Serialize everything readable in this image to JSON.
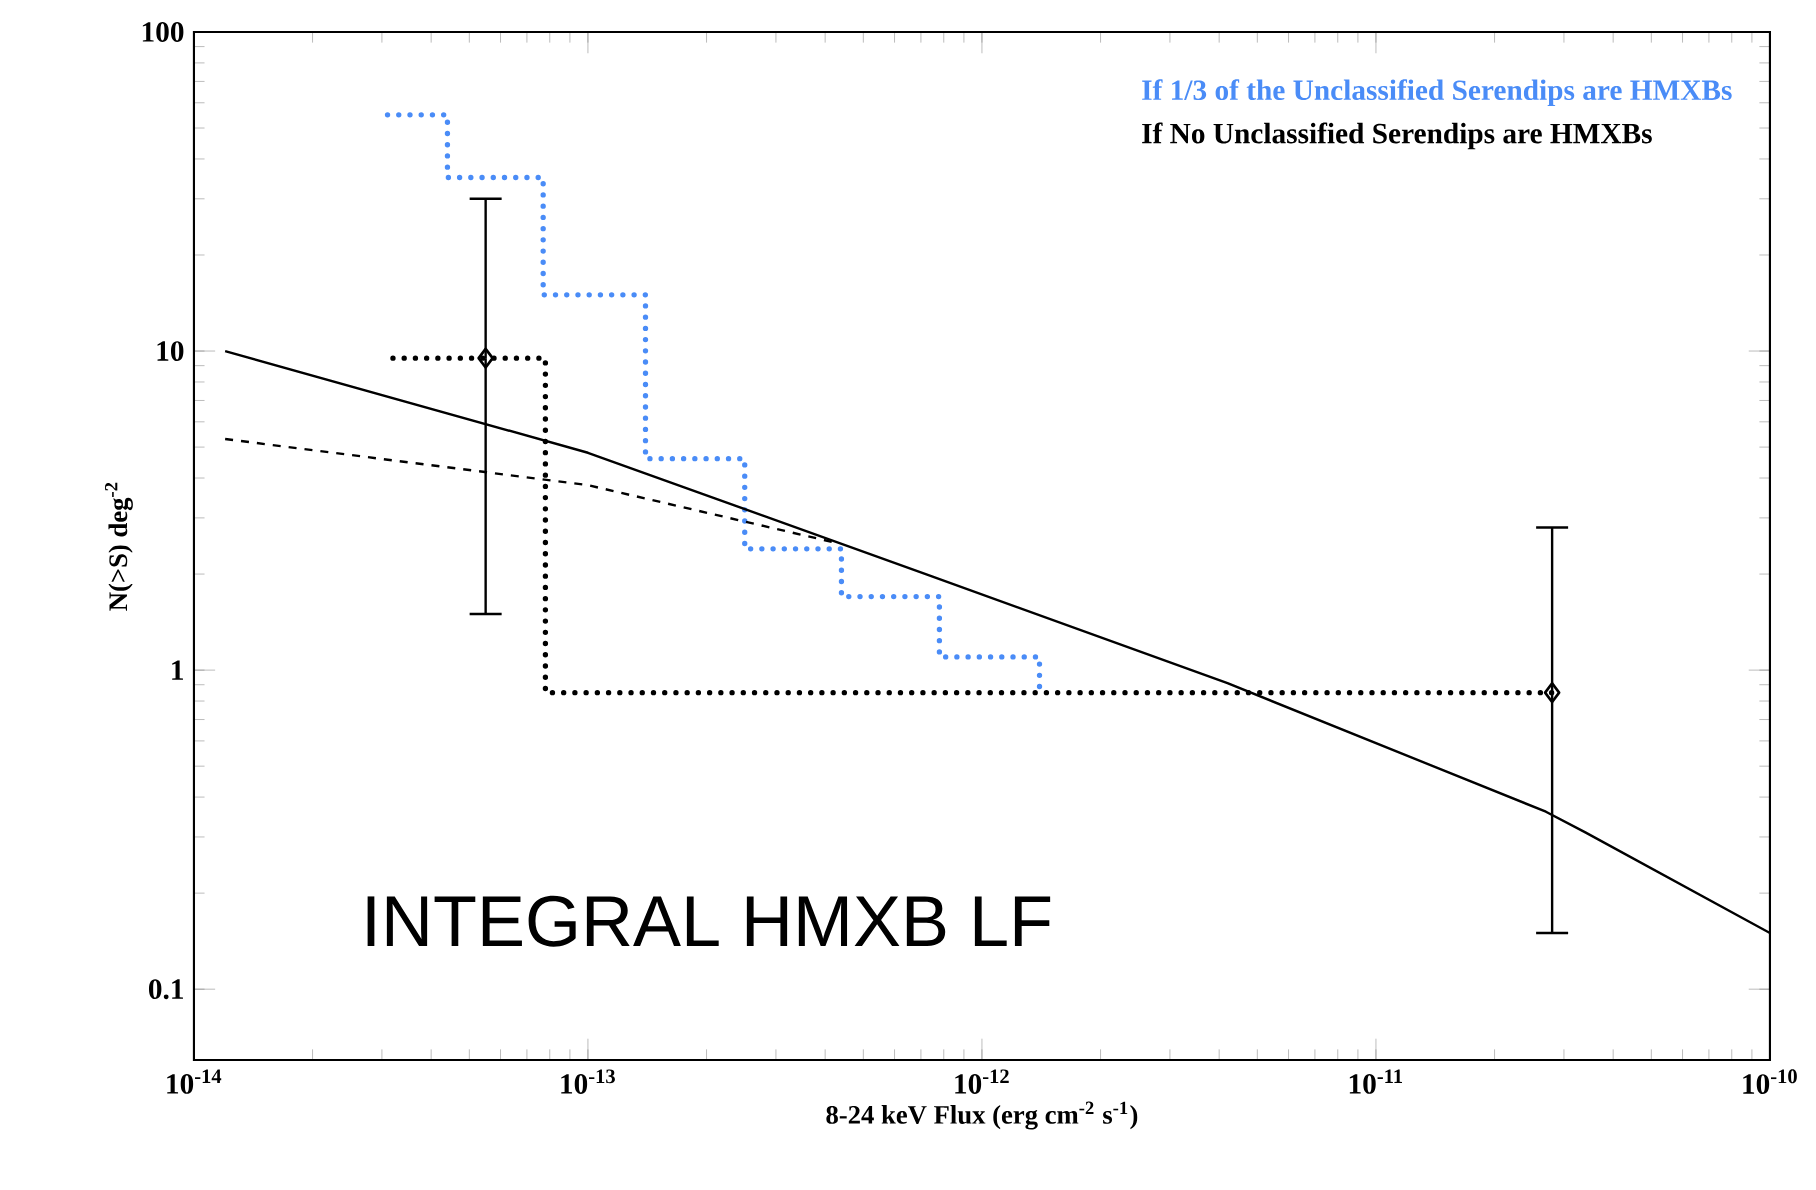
{
  "chart_data": {
    "type": "line",
    "xlabel": "8-24 keV Flux (erg cm$^{-2}$ s$^{-1}$)",
    "ylabel": "N(>S) deg$^{-2}$",
    "annotations": [
      "INTEGRAL HMXB LF"
    ],
    "log": "xy",
    "legend": "top right",
    "xlim": [
      1e-14,
      1e-10
    ],
    "ylim": [
      0.06,
      100
    ],
    "xticks": [
      {
        "value": 1e-14,
        "label": "10$^{-14}$"
      },
      {
        "value": 1e-13,
        "label": "10$^{-13}$"
      },
      {
        "value": 1e-12,
        "label": "10$^{-12}$"
      },
      {
        "value": 1e-11,
        "label": "10$^{-11}$"
      },
      {
        "value": 1e-10,
        "label": "10$^{-10}$"
      }
    ],
    "yticks": [
      0.1,
      1,
      10,
      100
    ],
    "series": [
      {
        "name": "If 1/3 of the Unclassified Serendips are HMXBs",
        "type": "step",
        "color": "#4a8cf7",
        "line_style": "dotted",
        "x": [
          3.1e-14,
          4.4e-14,
          7.7e-14,
          1.4e-13,
          2.5e-13,
          4.4e-13,
          7.8e-13,
          1.4e-12
        ],
        "values": [
          55,
          35,
          15,
          4.6,
          2.4,
          1.7,
          1.1,
          0.85
        ]
      },
      {
        "name": "If No Unclassified Serendips are HMXBs",
        "type": "step",
        "color": "#000000",
        "line_style": "dotted",
        "x": [
          3.2e-14,
          7.8e-14,
          2.8e-11
        ],
        "values": [
          9.5,
          0.85,
          0.85
        ]
      },
      {
        "color": "#000000",
        "line_style": "solid",
        "x": [
          1.2e-14,
          1e-13,
          7.2e-13,
          4.2e-12,
          2.7e-11,
          3.4e-11,
          1e-10
        ],
        "values": [
          10,
          4.8,
          2.0,
          0.91,
          0.36,
          0.31,
          0.15
        ]
      },
      {
        "color": "#000000",
        "line_style": "dashed",
        "x": [
          1.2e-14,
          1e-13,
          4.3e-13
        ],
        "values": [
          5.3,
          3.8,
          2.5
        ]
      },
      {
        "type": "scatter",
        "color": "#000000",
        "marker": "diamond",
        "x": [
          5.5e-14,
          2.8e-11
        ],
        "values": [
          9.5,
          0.85
        ],
        "errors": [
          [
            1.5,
            30
          ],
          [
            0.15,
            2.8
          ]
        ]
      }
    ]
  }
}
